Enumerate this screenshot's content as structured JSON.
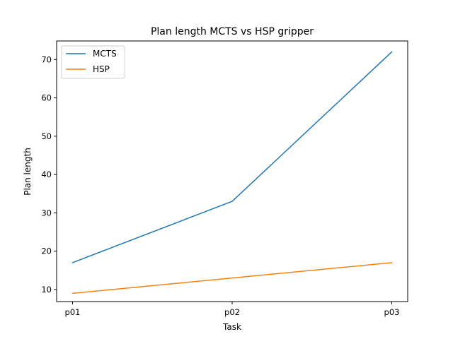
{
  "chart_data": {
    "type": "line",
    "title": "Plan length MCTS vs HSP gripper",
    "xlabel": "Task",
    "ylabel": "Plan length",
    "categories": [
      "p01",
      "p02",
      "p03"
    ],
    "series": [
      {
        "name": "MCTS",
        "color": "#1f77b4",
        "values": [
          17,
          33,
          72
        ]
      },
      {
        "name": "HSP",
        "color": "#ff7f0e",
        "values": [
          9,
          13,
          17
        ]
      }
    ],
    "ylim": [
      6.85,
      74.85
    ],
    "yticks": [
      10,
      20,
      30,
      40,
      50,
      60,
      70
    ],
    "grid": false,
    "legend_position": "upper-left"
  }
}
